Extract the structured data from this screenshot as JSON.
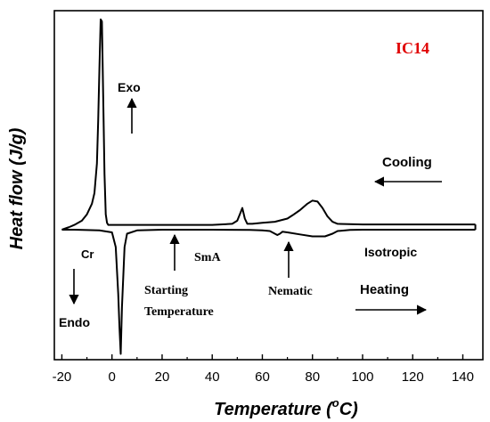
{
  "chart_data": {
    "type": "line",
    "title": "",
    "xlabel": "Temperature (",
    "xlabel_sup": "o",
    "xlabel_tail": "C)",
    "ylabel": "Heat flow (J/g)",
    "xlim": [
      -23,
      148
    ],
    "ylim": [
      -1.0,
      1.0
    ],
    "y_ticks_shown": false,
    "grid": false,
    "legend": "none",
    "x_ticks": [
      -20,
      0,
      20,
      40,
      60,
      80,
      100,
      120,
      140
    ],
    "x_tick_labels": [
      "-20",
      "0",
      "20",
      "40",
      "60",
      "80",
      "100",
      "120",
      "140"
    ],
    "series": [
      {
        "key": "cooling",
        "x": [
          -17,
          -15,
          -12,
          -10,
          -8,
          -7,
          -6,
          -5.5,
          -5,
          -4.5,
          -4,
          -3.5,
          -3,
          -2.5,
          -2,
          -1.5,
          0,
          20,
          40,
          48,
          50,
          51,
          52,
          53,
          54,
          56,
          60,
          65,
          70,
          72,
          75,
          78,
          80,
          82,
          84,
          86,
          88,
          90,
          100,
          120,
          140,
          145
        ],
        "y": [
          0.0,
          0.01,
          0.03,
          0.06,
          0.11,
          0.16,
          0.3,
          0.5,
          0.75,
          0.98,
          0.97,
          0.6,
          0.25,
          0.06,
          0.02,
          0.01,
          0.01,
          0.01,
          0.01,
          0.015,
          0.03,
          0.06,
          0.09,
          0.04,
          0.015,
          0.015,
          0.02,
          0.025,
          0.04,
          0.055,
          0.08,
          0.11,
          0.125,
          0.12,
          0.09,
          0.05,
          0.025,
          0.015,
          0.012,
          0.012,
          0.012,
          0.012
        ],
        "color": "#000000"
      },
      {
        "key": "heating",
        "x": [
          -20,
          -15,
          -5,
          0,
          1.5,
          2.5,
          3,
          3.5,
          4,
          5,
          6,
          10,
          20,
          40,
          55,
          60,
          63,
          65,
          66,
          67,
          68,
          70,
          75,
          80,
          85,
          88,
          90,
          95,
          100,
          120,
          145
        ],
        "y": [
          -0.02,
          -0.02,
          -0.025,
          -0.04,
          -0.15,
          -0.5,
          -0.75,
          -0.95,
          -0.6,
          -0.15,
          -0.05,
          -0.025,
          -0.02,
          -0.02,
          -0.022,
          -0.025,
          -0.03,
          -0.05,
          -0.06,
          -0.05,
          -0.035,
          -0.04,
          -0.055,
          -0.07,
          -0.07,
          -0.05,
          -0.03,
          -0.022,
          -0.02,
          -0.02,
          -0.02
        ],
        "color": "#000000"
      }
    ],
    "annotations": [
      {
        "key": "sample",
        "text": "IC14",
        "color": "#e00000"
      },
      {
        "key": "exo",
        "text": "Exo"
      },
      {
        "key": "endo",
        "text": "Endo"
      },
      {
        "key": "cooling",
        "text": "Cooling"
      },
      {
        "key": "heating",
        "text": "Heating"
      },
      {
        "key": "cr",
        "text": "Cr"
      },
      {
        "key": "sma",
        "text": "SmA"
      },
      {
        "key": "starting1",
        "text": "Starting"
      },
      {
        "key": "starting2",
        "text": "Temperature"
      },
      {
        "key": "nematic",
        "text": "Nematic"
      },
      {
        "key": "isotropic",
        "text": "Isotropic"
      }
    ]
  }
}
